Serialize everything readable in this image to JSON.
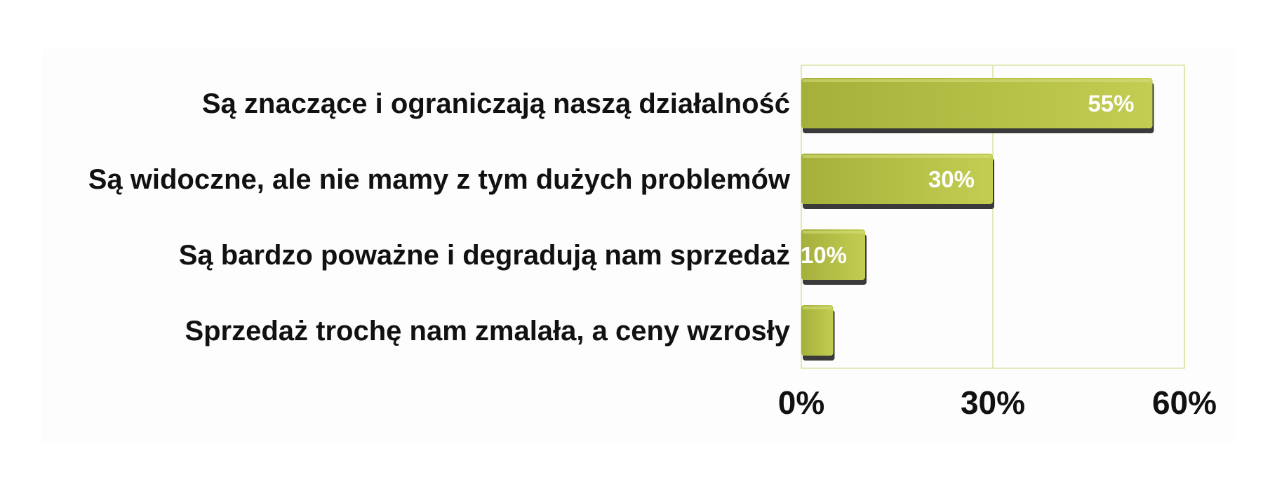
{
  "chart_data": {
    "type": "bar",
    "orientation": "horizontal",
    "categories": [
      "Są znaczące i ograniczają naszą działalność",
      "Są widoczne, ale nie mamy z tym dużych problemów",
      "Są bardzo poważne i degradują nam sprzedaż",
      "Sprzedaż trochę nam zmalała, a ceny wzrosły"
    ],
    "values": [
      55,
      30,
      10,
      5
    ],
    "data_labels": [
      "55%",
      "30%",
      "10%",
      ""
    ],
    "xlim": [
      0,
      60
    ],
    "ticks": [
      0,
      30,
      60
    ],
    "tick_labels": [
      "0%",
      "30%",
      "60%"
    ],
    "grid": true,
    "legend": "none",
    "colors": {
      "bar": "#b3bf45",
      "bar_light": "#c3cd52",
      "bar_dark": "#a4b03a",
      "bar_shadow": "#3a3a3a",
      "grid": "#d8e5a0",
      "background": "#fdfdfd"
    }
  }
}
